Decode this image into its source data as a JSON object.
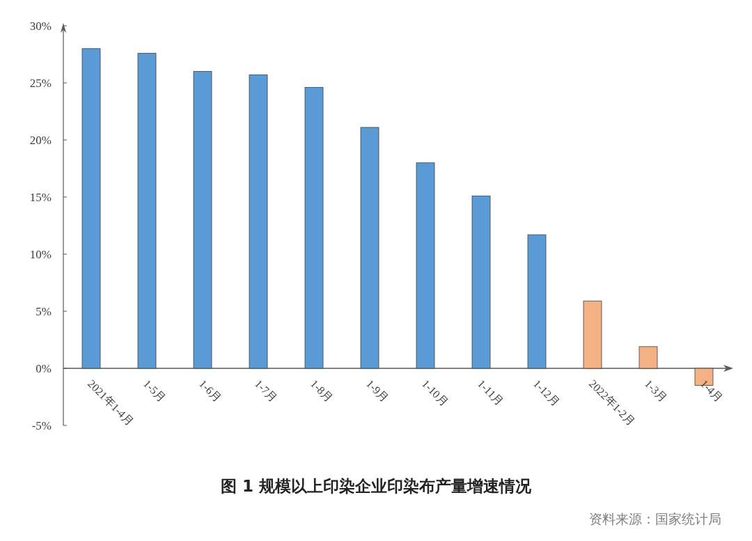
{
  "chart_data": {
    "type": "bar",
    "title": "图 1  规模以上印染企业印染布产量增速情况",
    "annotations": [
      "资料来源：国家统计局"
    ],
    "categories": [
      "2021年1-4月",
      "1-5月",
      "1-6月",
      "1-7月",
      "1-8月",
      "1-9月",
      "1-10月",
      "1-11月",
      "1-12月",
      "2022年1-2月",
      "1-3月",
      "1-4月"
    ],
    "values": [
      28.0,
      27.6,
      26.0,
      25.7,
      24.6,
      21.1,
      18.0,
      15.1,
      11.7,
      5.9,
      1.9,
      -1.5
    ],
    "colors": [
      "#5b9bd5",
      "#5b9bd5",
      "#5b9bd5",
      "#5b9bd5",
      "#5b9bd5",
      "#5b9bd5",
      "#5b9bd5",
      "#5b9bd5",
      "#5b9bd5",
      "#f4b183",
      "#f4b183",
      "#f4b183"
    ],
    "ylim": [
      -5,
      30
    ],
    "yticks": [
      {
        "value": -5,
        "label": "-5%"
      },
      {
        "value": 0,
        "label": "0%"
      },
      {
        "value": 5,
        "label": "5%"
      },
      {
        "value": 10,
        "label": "10%"
      },
      {
        "value": 15,
        "label": "15%"
      },
      {
        "value": 20,
        "label": "20%"
      },
      {
        "value": 25,
        "label": "25%"
      },
      {
        "value": 30,
        "label": "30%"
      }
    ],
    "grid": false
  }
}
